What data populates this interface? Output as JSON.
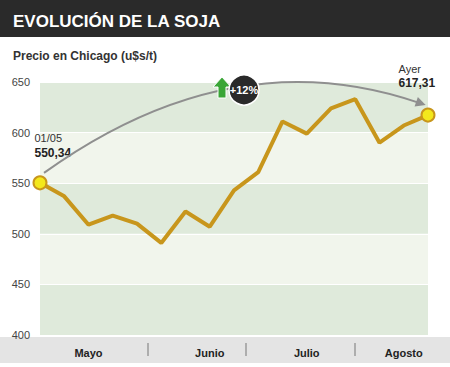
{
  "chart_data": {
    "type": "line",
    "title": "EVOLUCIÓN DE LA SOJA",
    "subtitle": "Precio en Chicago (u$s/t)",
    "categories": [
      null,
      null,
      "Mayo",
      null,
      null,
      null,
      null,
      "Junio",
      null,
      null,
      null,
      "Julio",
      null,
      null,
      null,
      "Agosto",
      null
    ],
    "values": [
      550.34,
      537,
      509,
      518,
      510,
      491,
      522,
      507,
      543,
      561,
      611,
      599,
      624,
      633,
      590,
      607,
      617.31
    ],
    "value_labels": [
      "550,34",
      null,
      null,
      null,
      null,
      null,
      null,
      null,
      null,
      null,
      null,
      null,
      null,
      null,
      null,
      null,
      "617,31"
    ],
    "point_labels": [
      "01/05",
      null,
      null,
      null,
      null,
      null,
      null,
      null,
      null,
      null,
      null,
      null,
      null,
      null,
      null,
      null,
      "Ayer"
    ],
    "change_label": "+12%",
    "color": "#c8961c",
    "marker": "circle",
    "ylim": [
      400,
      650
    ],
    "yticks": [
      400,
      450,
      500,
      550,
      600,
      650
    ],
    "grid": true
  }
}
